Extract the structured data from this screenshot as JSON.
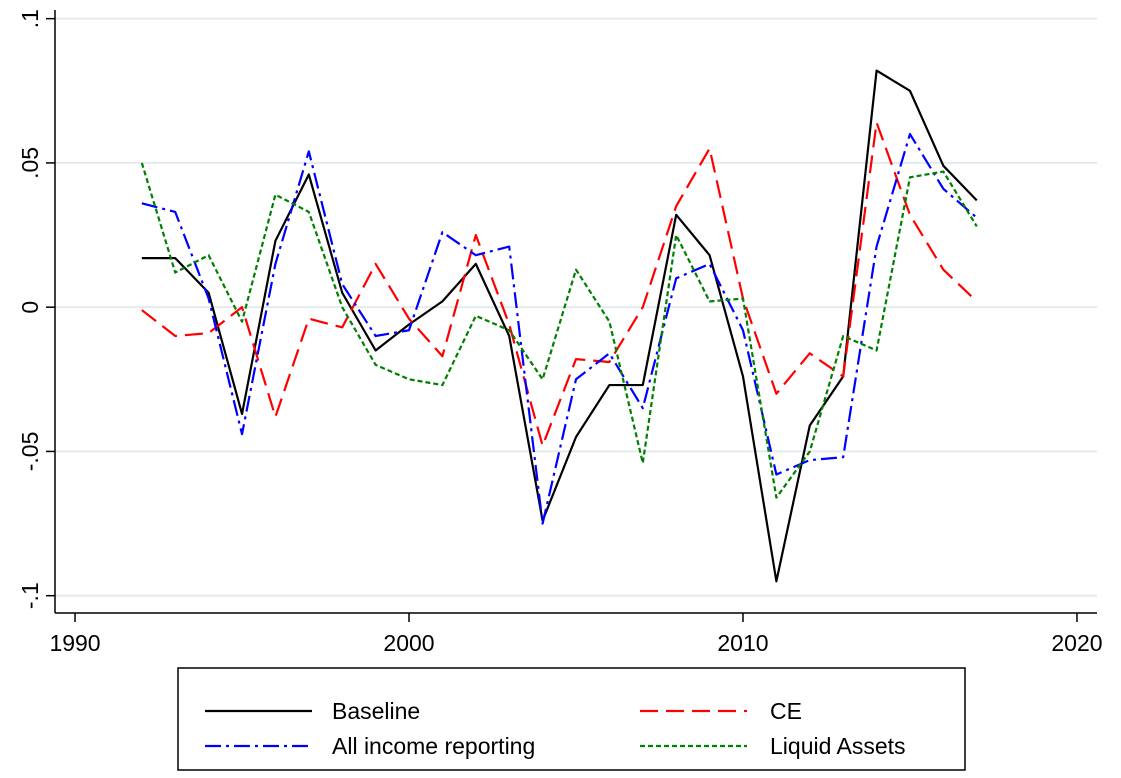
{
  "chart_data": {
    "type": "line",
    "x": [
      1992,
      1993,
      1994,
      1995,
      1996,
      1997,
      1998,
      1999,
      2000,
      2001,
      2002,
      2003,
      2004,
      2005,
      2006,
      2007,
      2008,
      2009,
      2010,
      2011,
      2012,
      2013,
      2014,
      2015,
      2016,
      2017
    ],
    "series": [
      {
        "name": "Baseline",
        "color": "#000000",
        "style": "solid",
        "values": [
          0.017,
          0.017,
          0.005,
          -0.037,
          0.023,
          0.046,
          0.005,
          -0.015,
          -0.006,
          0.002,
          0.015,
          -0.01,
          -0.074,
          -0.045,
          -0.027,
          -0.027,
          0.032,
          0.018,
          -0.024,
          -0.095,
          -0.041,
          -0.024,
          0.082,
          0.075,
          0.049,
          0.037
        ]
      },
      {
        "name": "CE",
        "color": "#ff0000",
        "style": "dashed",
        "values": [
          -0.001,
          -0.01,
          -0.009,
          0.0,
          -0.038,
          -0.004,
          -0.007,
          0.015,
          -0.004,
          -0.017,
          0.025,
          -0.006,
          -0.048,
          -0.018,
          -0.019,
          0.0,
          0.035,
          0.055,
          0.003,
          -0.03,
          -0.016,
          -0.024,
          0.064,
          0.032,
          0.013,
          0.002
        ]
      },
      {
        "name": "All income reporting",
        "color": "#0000ff",
        "style": "dashdot",
        "values": [
          0.036,
          0.033,
          0.003,
          -0.044,
          0.015,
          0.054,
          0.008,
          -0.01,
          -0.008,
          0.026,
          0.018,
          0.021,
          -0.075,
          -0.025,
          -0.016,
          -0.035,
          0.01,
          0.015,
          -0.008,
          -0.058,
          -0.053,
          -0.052,
          0.021,
          0.06,
          0.041,
          0.031
        ]
      },
      {
        "name": "Liquid Assets",
        "color": "#008000",
        "style": "dotted",
        "values": [
          0.05,
          0.012,
          0.018,
          -0.005,
          0.039,
          0.033,
          0.0,
          -0.02,
          -0.025,
          -0.027,
          -0.003,
          -0.008,
          -0.025,
          0.013,
          -0.005,
          -0.054,
          0.025,
          0.002,
          0.003,
          -0.066,
          -0.05,
          -0.01,
          -0.015,
          0.045,
          0.047,
          0.028
        ]
      }
    ],
    "xlim": [
      1989.4,
      2020.6
    ],
    "xticks": [
      1990,
      2000,
      2010,
      2020
    ],
    "ylim": [
      -0.106,
      0.103
    ],
    "yticks": [
      {
        "value": -0.1,
        "label": "-.1"
      },
      {
        "value": -0.05,
        "label": "-.05"
      },
      0,
      {
        "value": 0.05,
        "label": ".05"
      },
      {
        "value": 0.1,
        "label": ".1"
      }
    ],
    "grid": true,
    "legend": "bottom"
  }
}
